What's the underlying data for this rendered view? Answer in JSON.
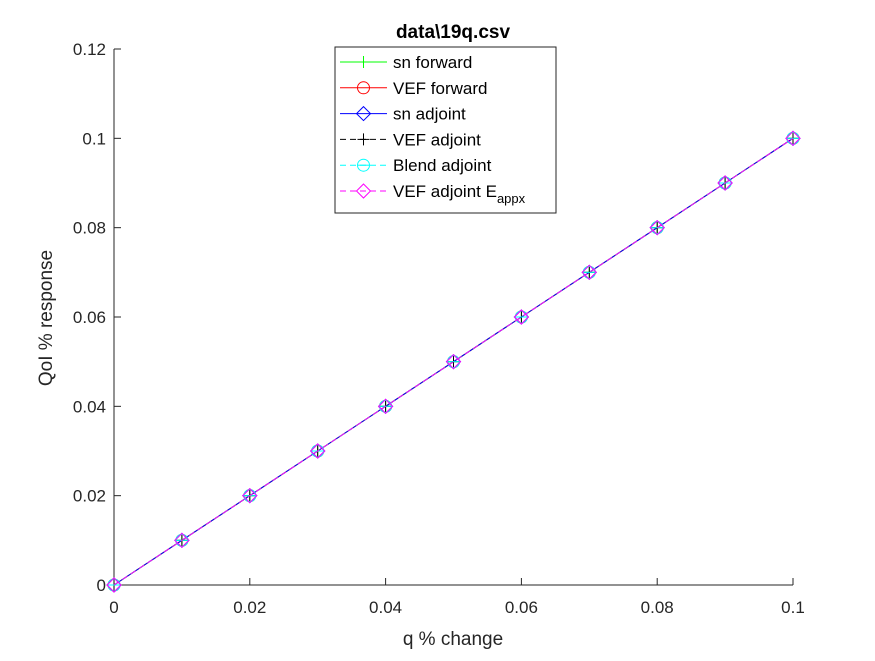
{
  "chart_data": {
    "type": "line",
    "title": "data\\19q.csv",
    "xlabel": "q % change",
    "ylabel": "QoI % response",
    "xlim": [
      0,
      0.1
    ],
    "ylim": [
      0,
      0.12
    ],
    "xticks": [
      "0",
      "0.02",
      "0.04",
      "0.06",
      "0.08",
      "0.1"
    ],
    "yticks": [
      "0",
      "0.02",
      "0.04",
      "0.06",
      "0.08",
      "0.1",
      "0.12"
    ],
    "x": [
      0,
      0.01,
      0.02,
      0.03,
      0.04,
      0.05,
      0.06,
      0.07,
      0.08,
      0.09,
      0.1
    ],
    "grid": false,
    "legend_position": "top-center",
    "series": [
      {
        "name": "sn forward",
        "color": "#00ff00",
        "marker": "plus",
        "dash": "solid",
        "values": [
          0,
          0.01,
          0.02,
          0.03,
          0.04,
          0.05,
          0.06,
          0.07,
          0.08,
          0.09,
          0.1
        ]
      },
      {
        "name": "VEF forward",
        "color": "#ff0000",
        "marker": "circle",
        "dash": "solid",
        "values": [
          0,
          0.01,
          0.02,
          0.03,
          0.04,
          0.05,
          0.06,
          0.07,
          0.08,
          0.09,
          0.1
        ]
      },
      {
        "name": "sn adjoint",
        "color": "#0000ff",
        "marker": "diamond",
        "dash": "solid",
        "values": [
          0,
          0.01,
          0.02,
          0.03,
          0.04,
          0.05,
          0.06,
          0.07,
          0.08,
          0.09,
          0.1
        ]
      },
      {
        "name": "VEF adjoint",
        "color": "#000000",
        "marker": "plus",
        "dash": "dashed",
        "values": [
          0,
          0.01,
          0.02,
          0.03,
          0.04,
          0.05,
          0.06,
          0.07,
          0.08,
          0.09,
          0.1
        ]
      },
      {
        "name": "Blend adjoint",
        "color": "#00ffff",
        "marker": "circle-minus",
        "dash": "dashed",
        "values": [
          0,
          0.01,
          0.02,
          0.03,
          0.04,
          0.05,
          0.06,
          0.07,
          0.08,
          0.09,
          0.1
        ]
      },
      {
        "name": "VEF adjoint E",
        "name_subscript": "appx",
        "color": "#ff00ff",
        "marker": "diamond",
        "dash": "dashed",
        "values": [
          0,
          0.01,
          0.02,
          0.03,
          0.04,
          0.05,
          0.06,
          0.07,
          0.08,
          0.09,
          0.1
        ]
      }
    ]
  }
}
